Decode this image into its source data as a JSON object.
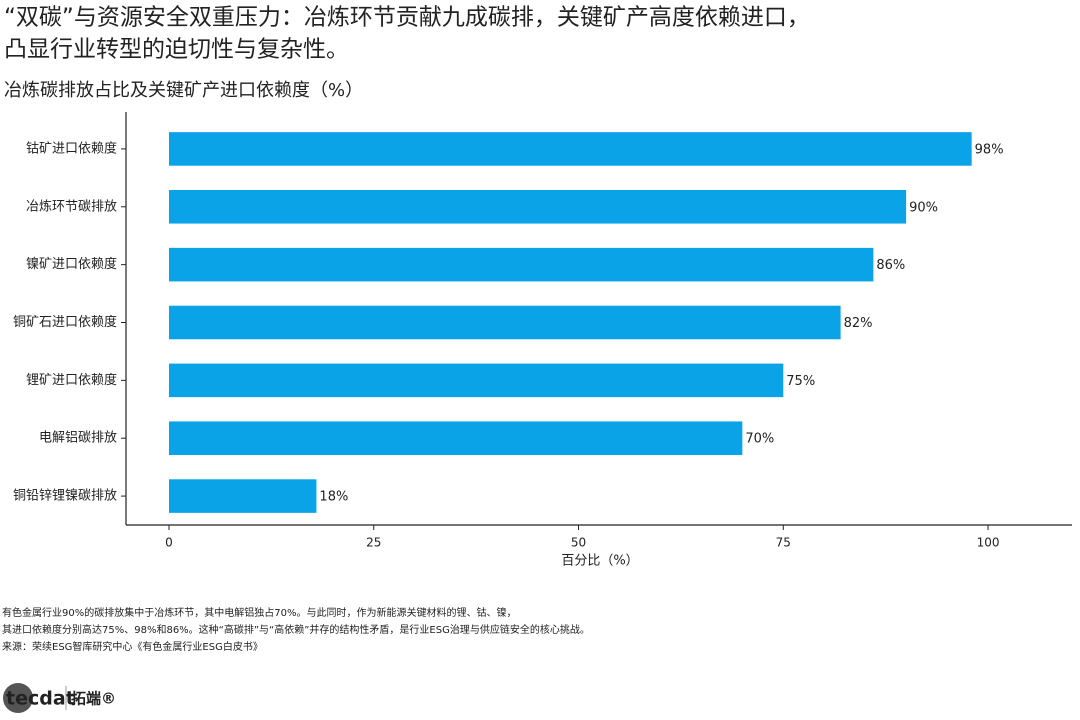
{
  "chart_data": {
    "type": "barh",
    "title_lines": [
      "“双碳”与资源安全双重压力：冶炼环节贡献九成碳排，关键矿产高度依赖进口，",
      "凸显行业转型的迫切性与复杂性。"
    ],
    "subtitle": "冶炼碳排放占比及关键矿产进口依赖度（%）",
    "categories": [
      "钴矿进口依赖度",
      "冶炼环节碳排放",
      "镍矿进口依赖度",
      "铜矿石进口依赖度",
      "锂矿进口依赖度",
      "电解铝碳排放",
      "铜铅锌锂镍碳排放"
    ],
    "values": [
      98,
      90,
      86,
      82,
      75,
      70,
      18
    ],
    "value_labels": [
      "98%",
      "90%",
      "86%",
      "82%",
      "75%",
      "70%",
      "18%"
    ],
    "color": "#0ba3e8",
    "xlabel": "百分比（%）",
    "xlim": [
      -5.25,
      110.25
    ],
    "xticks": [
      0,
      25,
      50,
      75,
      100
    ],
    "grid": false,
    "notes": [
      "有色金属行业90%的碳排放集中于冶炼环节，其中电解铝独占70%。与此同时，作为新能源关键材料的锂、钴、镍，",
      "其进口依赖度分别高达75%、98%和86%。这种“高碳排”与“高依赖”并存的结构性矛盾，是行业ESG治理与供应链安全的核心挑战。",
      "来源：荣续ESG智库研究中心《有色金属行业ESG白皮书》"
    ],
    "logo": [
      "tecdat",
      "拓端®"
    ]
  }
}
